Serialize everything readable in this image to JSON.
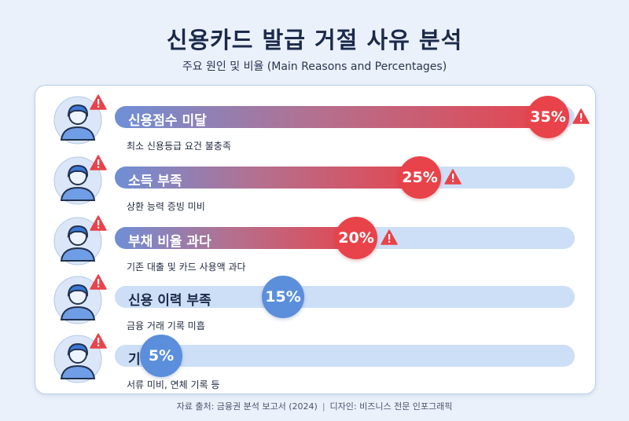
{
  "title": "신용카드 발급 거절 사유 분석",
  "subtitle": "주요 원인 및 비율 (Main Reasons and Percentages)",
  "colors": {
    "red": "#e8434a",
    "blue_start": "#6f8fd6",
    "blue_light": "#cddff6",
    "bubble_blue": "#5b8edb"
  },
  "chart_data": {
    "type": "bar",
    "orientation": "horizontal",
    "title": "신용카드 발급 거절 사유 분석",
    "subtitle": "주요 원인 및 비율 (Main Reasons and Percentages)",
    "unit": "%",
    "xlim": [
      0,
      35
    ],
    "categories": [
      "신용점수 미달",
      "소득 부족",
      "부채 비율 과다",
      "신용 이력 부족",
      "기타 요인"
    ],
    "values": [
      35,
      25,
      20,
      15,
      5
    ],
    "value_labels": [
      "35%",
      "25%",
      "20%",
      "15%",
      "5%"
    ],
    "descriptions": [
      "최소 신용등급 요건 불충족",
      "상환 능력 증빙 미비",
      "기존 대출 및 카드 사용액 과다",
      "금융 거래 기록 미흡",
      "서류 미비, 연체 기록 등"
    ],
    "high_risk": [
      true,
      true,
      true,
      false,
      false
    ]
  },
  "icons": {
    "avatar": "person-avatar-icon",
    "warning": "warning-triangle-icon"
  },
  "footer": {
    "source": "자료 출처: 금융권 분석 보고서 (2024)",
    "separator": "|",
    "design": "디자인: 비즈니스 전문 인포그래픽"
  }
}
